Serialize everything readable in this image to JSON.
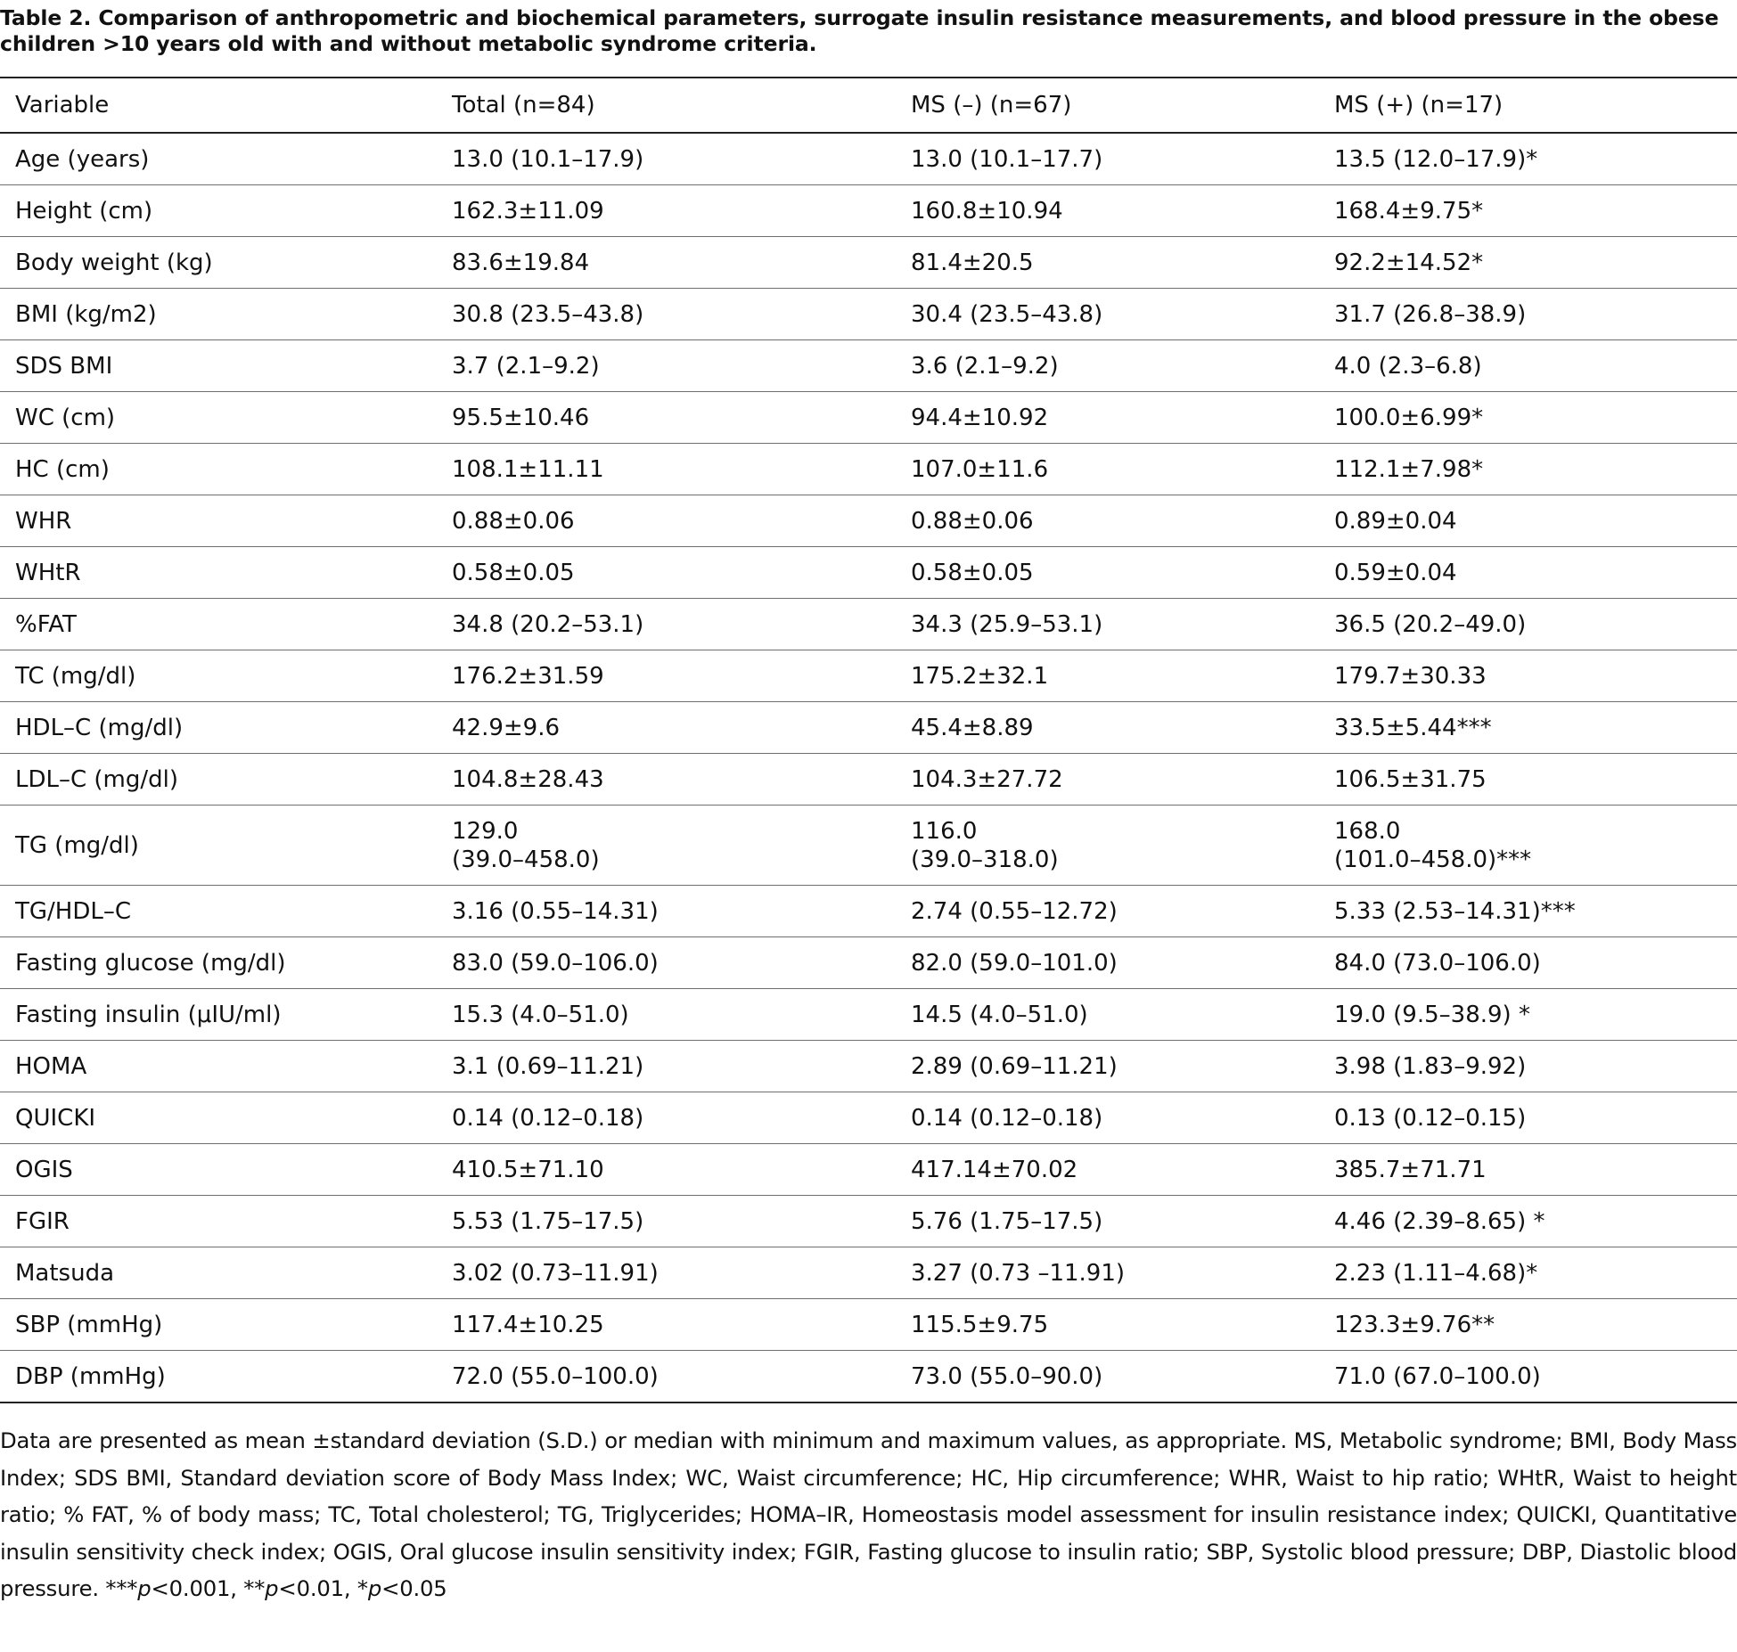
{
  "caption": "Table 2. Comparison of anthropometric and biochemical parameters, surrogate insulin resistance measurements, and blood pressure in the obese children >10 years old with and without metabolic syndrome criteria.",
  "table": {
    "headers": [
      "Variable",
      "Total (n=84)",
      "MS (–) (n=67)",
      "MS (+) (n=17)"
    ],
    "rows": [
      [
        "Age (years)",
        "13.0 (10.1–17.9)",
        "13.0 (10.1–17.7)",
        "13.5 (12.0–17.9)*"
      ],
      [
        "Height (cm)",
        "162.3±11.09",
        "160.8±10.94",
        "168.4±9.75*"
      ],
      [
        "Body weight (kg)",
        "83.6±19.84",
        "81.4±20.5",
        "92.2±14.52*"
      ],
      [
        "BMI (kg/m2)",
        "30.8 (23.5–43.8)",
        "30.4 (23.5–43.8)",
        "31.7 (26.8–38.9)"
      ],
      [
        "SDS BMI",
        "3.7 (2.1–9.2)",
        "3.6 (2.1–9.2)",
        "4.0 (2.3–6.8)"
      ],
      [
        "WC (cm)",
        "95.5±10.46",
        "94.4±10.92",
        "100.0±6.99*"
      ],
      [
        "HC (cm)",
        "108.1±11.11",
        "107.0±11.6",
        "112.1±7.98*"
      ],
      [
        "WHR",
        "0.88±0.06",
        "0.88±0.06",
        "0.89±0.04"
      ],
      [
        "WHtR",
        "0.58±0.05",
        "0.58±0.05",
        "0.59±0.04"
      ],
      [
        "%FAT",
        "34.8 (20.2–53.1)",
        "34.3 (25.9–53.1)",
        "36.5 (20.2–49.0)"
      ],
      [
        "TC (mg/dl)",
        "176.2±31.59",
        "175.2±32.1",
        "179.7±30.33"
      ],
      [
        "HDL–C (mg/dl)",
        "42.9±9.6",
        "45.4±8.89",
        "33.5±5.44***"
      ],
      [
        "LDL–C (mg/dl)",
        "104.8±28.43",
        "104.3±27.72",
        "106.5±31.75"
      ],
      [
        "TG (mg/dl)",
        [
          "129.0",
          "(39.0–458.0)"
        ],
        [
          "116.0",
          "(39.0–318.0)"
        ],
        [
          "168.0",
          "(101.0–458.0)***"
        ]
      ],
      [
        "TG/HDL–C",
        "3.16 (0.55–14.31)",
        "2.74 (0.55–12.72)",
        "5.33 (2.53–14.31)***"
      ],
      [
        "Fasting glucose (mg/dl)",
        "83.0 (59.0–106.0)",
        "82.0 (59.0–101.0)",
        "84.0 (73.0–106.0)"
      ],
      [
        "Fasting insulin (μIU/ml)",
        "15.3 (4.0–51.0)",
        "14.5 (4.0–51.0)",
        "19.0 (9.5–38.9) *"
      ],
      [
        "HOMA",
        "3.1 (0.69–11.21)",
        "2.89 (0.69–11.21)",
        "3.98 (1.83–9.92)"
      ],
      [
        "QUICKI",
        "0.14 (0.12–0.18)",
        "0.14 (0.12–0.18)",
        "0.13 (0.12–0.15)"
      ],
      [
        "OGIS",
        "410.5±71.10",
        "417.14±70.02",
        "385.7±71.71"
      ],
      [
        "FGIR",
        "5.53 (1.75–17.5)",
        "5.76 (1.75–17.5)",
        "4.46 (2.39–8.65) *"
      ],
      [
        "Matsuda",
        "3.02 (0.73–11.91)",
        "3.27 (0.73 –11.91)",
        "2.23 (1.11–4.68)*"
      ],
      [
        "SBP (mmHg)",
        "117.4±10.25",
        "115.5±9.75",
        "123.3±9.76**"
      ],
      [
        "DBP (mmHg)",
        "72.0 (55.0–100.0)",
        "73.0 (55.0–90.0)",
        "71.0 (67.0–100.0)"
      ]
    ]
  },
  "footnote": {
    "text": "Data are presented as mean ±standard deviation (S.D.) or median with minimum and maximum values, as appropriate. MS, Metabolic syndrome; BMI, Body Mass Index; SDS BMI, Standard deviation score of Body Mass Index; WC, Waist circumference; HC, Hip circumference; WHR, Waist to hip ratio; WHtR, Waist to height ratio; % FAT, % of body mass; TC, Total cholesterol; TG, Triglycerides; HOMA–IR, Homeostasis model assessment for insulin resistance index; QUICKI, Quantitative insulin sensitivity check index; OGIS, Oral glucose insulin sensitivity index; FGIR, Fasting glucose to insulin ratio; SBP, Systolic blood pressure; DBP, Diastolic blood pressure. ",
    "sig1_stars": "***",
    "sig1_p": "p",
    "sig1_rest": "<0.001, ",
    "sig2_stars": "**",
    "sig2_p": "p",
    "sig2_rest": "<0.01, ",
    "sig3_stars": "*",
    "sig3_p": "p",
    "sig3_rest": "<0.05"
  }
}
